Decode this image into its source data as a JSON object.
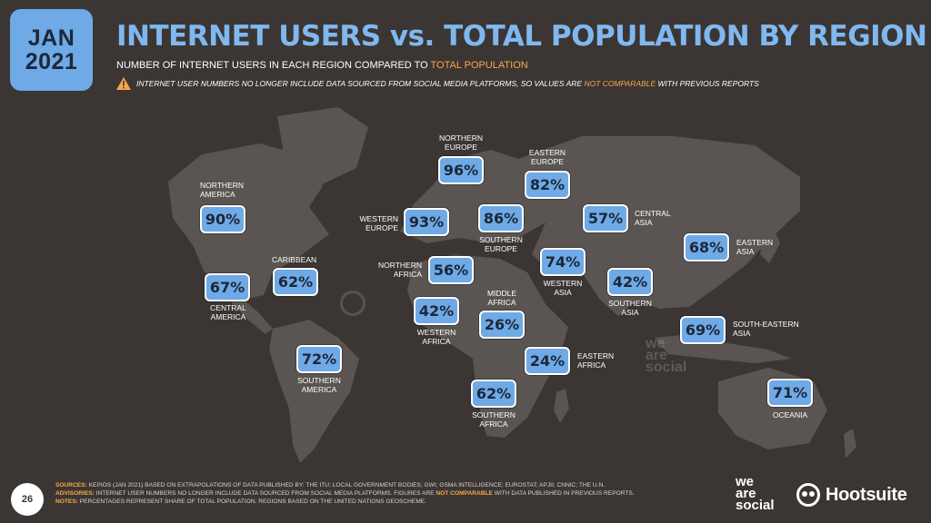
{
  "header": {
    "date_month": "JAN",
    "date_year": "2021",
    "title": "INTERNET USERS vs. TOTAL POPULATION BY REGION",
    "subtitle_prefix": "NUMBER OF INTERNET USERS IN EACH REGION COMPARED TO ",
    "subtitle_highlight": "TOTAL POPULATION",
    "warning_prefix": "INTERNET USER NUMBERS NO LONGER INCLUDE DATA SOURCED FROM SOCIAL MEDIA PLATFORMS, SO VALUES ARE ",
    "warning_highlight": "NOT COMPARABLE",
    "warning_suffix": " WITH PREVIOUS REPORTS"
  },
  "regions": [
    {
      "key": "northern_america",
      "value": "90%",
      "label": "NORTHERN\nAMERICA"
    },
    {
      "key": "caribbean",
      "value": "62%",
      "label": "CARIBBEAN"
    },
    {
      "key": "central_america",
      "value": "67%",
      "label": "CENTRAL\nAMERICA"
    },
    {
      "key": "southern_america",
      "value": "72%",
      "label": "SOUTHERN\nAMERICA"
    },
    {
      "key": "northern_europe",
      "value": "96%",
      "label": "NORTHERN\nEUROPE"
    },
    {
      "key": "western_europe",
      "value": "93%",
      "label": "WESTERN\nEUROPE"
    },
    {
      "key": "southern_europe",
      "value": "86%",
      "label": "SOUTHERN\nEUROPE"
    },
    {
      "key": "eastern_europe",
      "value": "82%",
      "label": "EASTERN\nEUROPE"
    },
    {
      "key": "northern_africa",
      "value": "56%",
      "label": "NORTHERN\nAFRICA"
    },
    {
      "key": "western_africa",
      "value": "42%",
      "label": "WESTERN\nAFRICA"
    },
    {
      "key": "middle_africa",
      "value": "26%",
      "label": "MIDDLE\nAFRICA"
    },
    {
      "key": "eastern_africa",
      "value": "24%",
      "label": "EASTERN\nAFRICA"
    },
    {
      "key": "southern_africa",
      "value": "62%",
      "label": "SOUTHERN\nAFRICA"
    },
    {
      "key": "western_asia",
      "value": "74%",
      "label": "WESTERN\nASIA"
    },
    {
      "key": "central_asia",
      "value": "57%",
      "label": "CENTRAL\nASIA"
    },
    {
      "key": "southern_asia",
      "value": "42%",
      "label": "SOUTHERN\nASIA"
    },
    {
      "key": "eastern_asia",
      "value": "68%",
      "label": "EASTERN\nASIA"
    },
    {
      "key": "south_eastern_asia",
      "value": "69%",
      "label": "SOUTH-EASTERN\nASIA"
    },
    {
      "key": "oceania",
      "value": "71%",
      "label": "OCEANIA"
    }
  ],
  "watermark": "we\nare\nsocial",
  "footer": {
    "page_number": "26",
    "sources_key": "SOURCES:",
    "sources_text": " KEPIOS (JAN 2021) BASED ON EXTRAPOLATIONS OF DATA PUBLISHED BY: THE ITU; LOCAL GOVERNMENT BODIES; GWI; GSMA INTELLIGENCE; EUROSTAT; APJII; CNNIC; THE U.N.",
    "advisories_key": "ADVISORIES:",
    "advisories_text": " INTERNET USER NUMBERS NO LONGER INCLUDE DATA SOURCED FROM SOCIAL MEDIA PLATFORMS. FIGURES ARE ",
    "advisories_highlight": "NOT COMPARABLE",
    "advisories_suffix": " WITH DATA PUBLISHED IN PREVIOUS REPORTS.",
    "notes_key": "NOTES:",
    "notes_text": " PERCENTAGES REPRESENT SHARE OF TOTAL POPULATION. REGIONS BASED ON THE UNITED NATIONS GEOSCHEME.",
    "brand_we_are_social": "we\nare\nsocial",
    "brand_hootsuite": "Hootsuite"
  },
  "colors": {
    "background": "#3b3633",
    "land": "#5a5552",
    "accent": "#6fa9e6",
    "highlight": "#f7a84a"
  }
}
